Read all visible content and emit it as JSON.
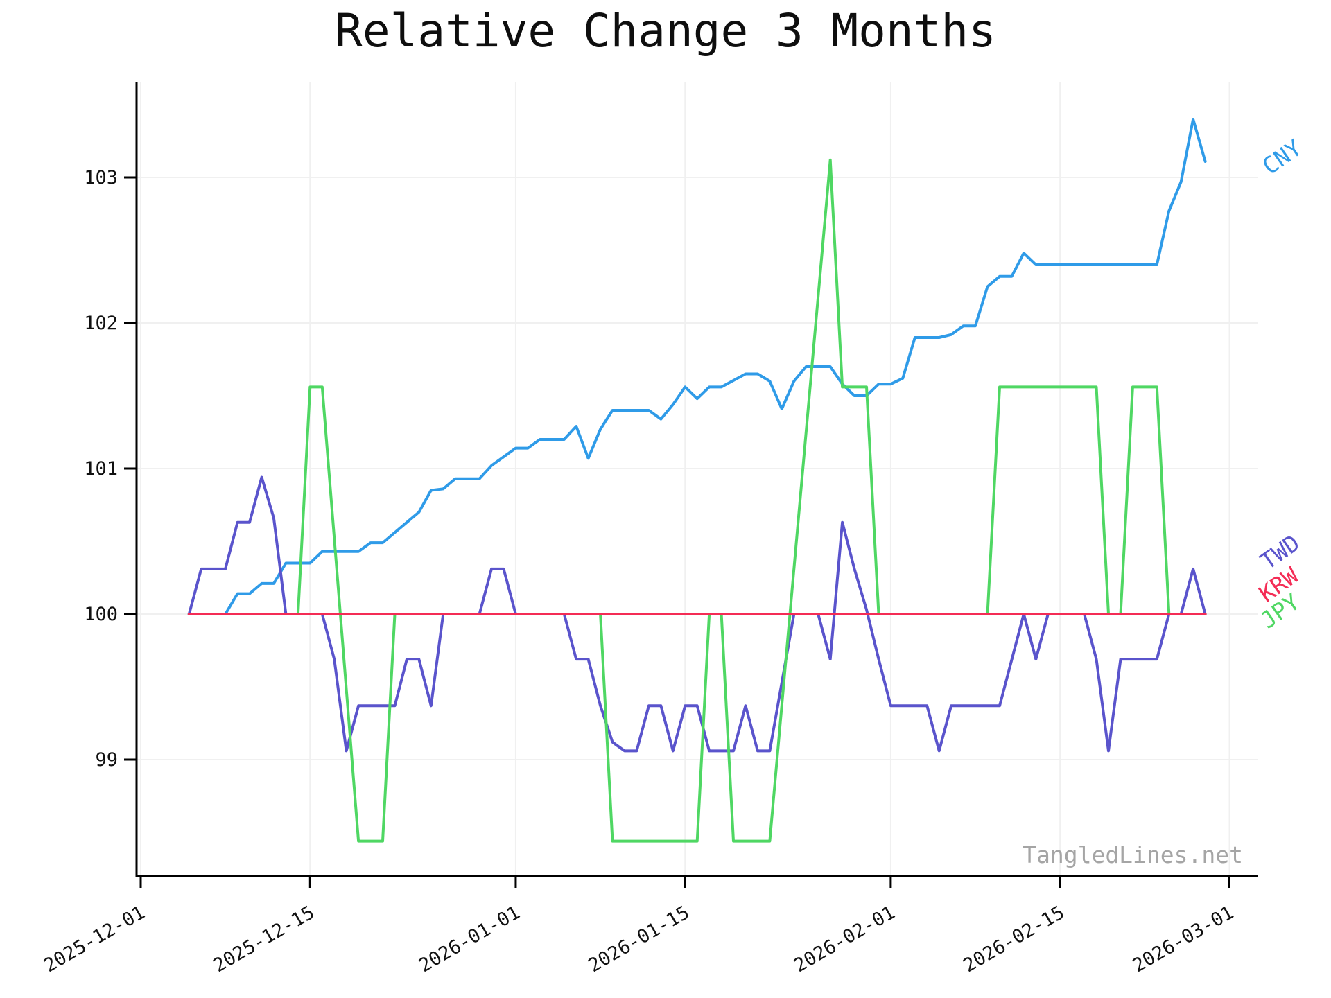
{
  "chart": {
    "title": "Relative Change 3 Months",
    "watermark": "TangledLines.net"
  },
  "chart_data": {
    "type": "line",
    "title": "Relative Change 3 Months",
    "xlabel": "",
    "ylabel": "",
    "x_axis": {
      "kind": "time",
      "tick_labels": [
        "2025-12-01",
        "2025-12-15",
        "2026-01-01",
        "2026-01-15",
        "2026-02-01",
        "2026-02-15",
        "2026-03-01"
      ],
      "tick_rotation_deg": 30,
      "xlim": [
        "2025-12-01",
        "2026-03-03"
      ]
    },
    "y_axis": {
      "ticks": [
        99,
        100,
        101,
        102,
        103
      ],
      "ylim": [
        98.2,
        103.65
      ]
    },
    "grid": true,
    "legend_position": "end-of-line-labels-right",
    "interpolation": "linear",
    "draw_order": [
      "CNY",
      "TWD",
      "JPY",
      "KRW"
    ],
    "series": [
      {
        "name": "CNY",
        "color": "#2f9be8",
        "points": [
          [
            "2025-12-05",
            100
          ],
          [
            "2025-12-08",
            100
          ],
          [
            "2025-12-09",
            100.14
          ],
          [
            "2025-12-10",
            100.14
          ],
          [
            "2025-12-11",
            100.21
          ],
          [
            "2025-12-12",
            100.21
          ],
          [
            "2025-12-13",
            100.35
          ],
          [
            "2025-12-15",
            100.35
          ],
          [
            "2025-12-16",
            100.43
          ],
          [
            "2025-12-19",
            100.43
          ],
          [
            "2025-12-20",
            100.49
          ],
          [
            "2025-12-21",
            100.49
          ],
          [
            "2025-12-23",
            100.63
          ],
          [
            "2025-12-24",
            100.7
          ],
          [
            "2025-12-25",
            100.85
          ],
          [
            "2025-12-26",
            100.86
          ],
          [
            "2025-12-27",
            100.93
          ],
          [
            "2025-12-29",
            100.93
          ],
          [
            "2025-12-30",
            101.02
          ],
          [
            "2026-01-01",
            101.14
          ],
          [
            "2026-01-02",
            101.14
          ],
          [
            "2026-01-03",
            101.2
          ],
          [
            "2026-01-05",
            101.2
          ],
          [
            "2026-01-06",
            101.29
          ],
          [
            "2026-01-07",
            101.07
          ],
          [
            "2026-01-08",
            101.27
          ],
          [
            "2026-01-09",
            101.4
          ],
          [
            "2026-01-12",
            101.4
          ],
          [
            "2026-01-13",
            101.34
          ],
          [
            "2026-01-14",
            101.44
          ],
          [
            "2026-01-15",
            101.56
          ],
          [
            "2026-01-16",
            101.48
          ],
          [
            "2026-01-17",
            101.56
          ],
          [
            "2026-01-18",
            101.56
          ],
          [
            "2026-01-20",
            101.65
          ],
          [
            "2026-01-21",
            101.65
          ],
          [
            "2026-01-22",
            101.6
          ],
          [
            "2026-01-23",
            101.41
          ],
          [
            "2026-01-24",
            101.6
          ],
          [
            "2026-01-25",
            101.7
          ],
          [
            "2026-01-27",
            101.7
          ],
          [
            "2026-01-28",
            101.58
          ],
          [
            "2026-01-29",
            101.5
          ],
          [
            "2026-01-30",
            101.5
          ],
          [
            "2026-01-31",
            101.58
          ],
          [
            "2026-02-01",
            101.58
          ],
          [
            "2026-02-02",
            101.62
          ],
          [
            "2026-02-03",
            101.9
          ],
          [
            "2026-02-05",
            101.9
          ],
          [
            "2026-02-06",
            101.92
          ],
          [
            "2026-02-07",
            101.98
          ],
          [
            "2026-02-08",
            101.98
          ],
          [
            "2026-02-09",
            102.25
          ],
          [
            "2026-02-10",
            102.32
          ],
          [
            "2026-02-11",
            102.32
          ],
          [
            "2026-02-12",
            102.48
          ],
          [
            "2026-02-13",
            102.4
          ],
          [
            "2026-02-23",
            102.4
          ],
          [
            "2026-02-24",
            102.77
          ],
          [
            "2026-02-25",
            102.97
          ],
          [
            "2026-02-26",
            103.4
          ],
          [
            "2026-02-27",
            103.11
          ]
        ]
      },
      {
        "name": "TWD",
        "color": "#5a54cc",
        "points": [
          [
            "2025-12-05",
            100
          ],
          [
            "2025-12-06",
            100.31
          ],
          [
            "2025-12-08",
            100.31
          ],
          [
            "2025-12-09",
            100.63
          ],
          [
            "2025-12-10",
            100.63
          ],
          [
            "2025-12-11",
            100.94
          ],
          [
            "2025-12-12",
            100.66
          ],
          [
            "2025-12-13",
            100
          ],
          [
            "2025-12-16",
            100
          ],
          [
            "2025-12-17",
            99.69
          ],
          [
            "2025-12-18",
            99.06
          ],
          [
            "2025-12-19",
            99.37
          ],
          [
            "2025-12-22",
            99.37
          ],
          [
            "2025-12-23",
            99.69
          ],
          [
            "2025-12-24",
            99.69
          ],
          [
            "2025-12-25",
            99.37
          ],
          [
            "2025-12-26",
            100
          ],
          [
            "2025-12-29",
            100
          ],
          [
            "2025-12-30",
            100.31
          ],
          [
            "2025-12-31",
            100.31
          ],
          [
            "2026-01-01",
            100
          ],
          [
            "2026-01-05",
            100
          ],
          [
            "2026-01-06",
            99.69
          ],
          [
            "2026-01-07",
            99.69
          ],
          [
            "2026-01-08",
            99.37
          ],
          [
            "2026-01-09",
            99.12
          ],
          [
            "2026-01-10",
            99.06
          ],
          [
            "2026-01-11",
            99.06
          ],
          [
            "2026-01-12",
            99.37
          ],
          [
            "2026-01-13",
            99.37
          ],
          [
            "2026-01-14",
            99.06
          ],
          [
            "2026-01-15",
            99.37
          ],
          [
            "2026-01-16",
            99.37
          ],
          [
            "2026-01-17",
            99.06
          ],
          [
            "2026-01-19",
            99.06
          ],
          [
            "2026-01-20",
            99.37
          ],
          [
            "2026-01-21",
            99.06
          ],
          [
            "2026-01-22",
            99.06
          ],
          [
            "2026-01-24",
            100
          ],
          [
            "2026-01-26",
            100
          ],
          [
            "2026-01-27",
            99.69
          ],
          [
            "2026-01-28",
            100.63
          ],
          [
            "2026-01-29",
            100.31
          ],
          [
            "2026-01-30",
            100.03
          ],
          [
            "2026-01-31",
            99.69
          ],
          [
            "2026-02-01",
            99.37
          ],
          [
            "2026-02-04",
            99.37
          ],
          [
            "2026-02-05",
            99.06
          ],
          [
            "2026-02-06",
            99.37
          ],
          [
            "2026-02-10",
            99.37
          ],
          [
            "2026-02-12",
            100
          ],
          [
            "2026-02-13",
            99.69
          ],
          [
            "2026-02-14",
            100
          ],
          [
            "2026-02-17",
            100
          ],
          [
            "2026-02-18",
            99.69
          ],
          [
            "2026-02-19",
            99.06
          ],
          [
            "2026-02-20",
            99.69
          ],
          [
            "2026-02-23",
            99.69
          ],
          [
            "2026-02-24",
            100
          ],
          [
            "2026-02-25",
            100
          ],
          [
            "2026-02-26",
            100.31
          ],
          [
            "2026-02-27",
            100
          ]
        ]
      },
      {
        "name": "KRW",
        "color": "#f42c55",
        "points": [
          [
            "2025-12-05",
            100
          ],
          [
            "2026-02-27",
            100
          ]
        ]
      },
      {
        "name": "JPY",
        "color": "#4fd763",
        "points": [
          [
            "2025-12-05",
            100
          ],
          [
            "2025-12-14",
            100
          ],
          [
            "2025-12-15",
            101.56
          ],
          [
            "2025-12-16",
            101.56
          ],
          [
            "2025-12-19",
            98.44
          ],
          [
            "2025-12-21",
            98.44
          ],
          [
            "2025-12-22",
            100
          ],
          [
            "2026-01-08",
            100
          ],
          [
            "2026-01-09",
            98.44
          ],
          [
            "2026-01-16",
            98.44
          ],
          [
            "2026-01-17",
            100
          ],
          [
            "2026-01-18",
            100
          ],
          [
            "2026-01-19",
            98.44
          ],
          [
            "2026-01-22",
            98.44
          ],
          [
            "2026-01-27",
            103.12
          ],
          [
            "2026-01-28",
            101.56
          ],
          [
            "2026-01-30",
            101.56
          ],
          [
            "2026-01-31",
            100
          ],
          [
            "2026-02-09",
            100
          ],
          [
            "2026-02-10",
            101.56
          ],
          [
            "2026-02-18",
            101.56
          ],
          [
            "2026-02-19",
            100
          ],
          [
            "2026-02-20",
            100
          ],
          [
            "2026-02-21",
            101.56
          ],
          [
            "2026-02-23",
            101.56
          ],
          [
            "2026-02-24",
            100
          ],
          [
            "2026-02-27",
            100
          ]
        ]
      }
    ],
    "colors": {
      "grid": "#f0f0f0",
      "axis": "#000000",
      "tick_label": "#111111",
      "title": "#0e0e0e",
      "watermark": "#a5a5a5",
      "background": "#ffffff"
    }
  }
}
